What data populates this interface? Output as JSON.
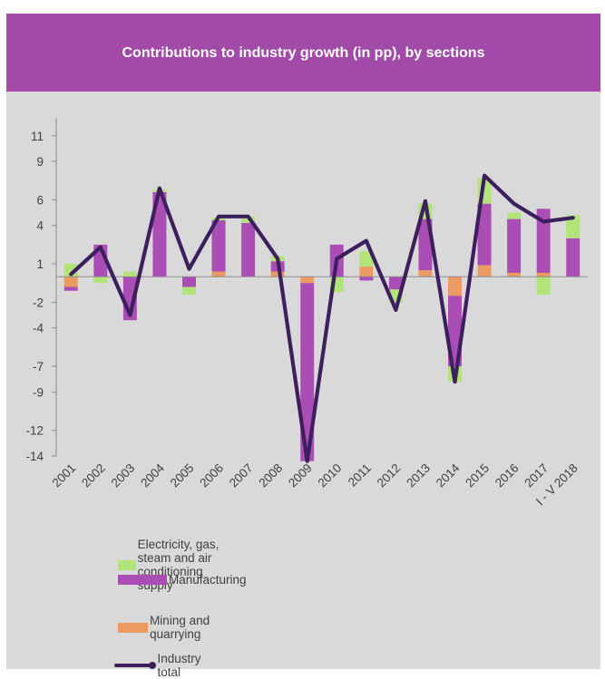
{
  "header": {
    "title": "Contributions to industry growth (in pp), by sections"
  },
  "colors": {
    "header_bg": "#a14aa8",
    "panel_bg": "#d9d9d9",
    "electricity": "#b2e47a",
    "manufacturing": "#aa4db4",
    "mining": "#eb9a62",
    "industry_total": "#3e1f5e"
  },
  "chart_data": {
    "type": "bar",
    "stacked": true,
    "categories": [
      "2001",
      "2002",
      "2003",
      "2004",
      "2005",
      "2006",
      "2007",
      "2008",
      "2009",
      "2010",
      "2011",
      "2012",
      "2013",
      "2014",
      "2015",
      "2016",
      "2017",
      "I - V 2018"
    ],
    "yticks": [
      11,
      9,
      6,
      4,
      1,
      -2,
      -4,
      -7,
      -9,
      -12,
      -14
    ],
    "ylim": [
      -14,
      12.4
    ],
    "grid": false,
    "legend_position": "bottom",
    "series": [
      {
        "name": "Electricity, gas, steam and air conditioning supply",
        "type": "bar",
        "values": [
          1.0,
          -0.5,
          0.4,
          0.2,
          -0.6,
          0.2,
          0.5,
          0.4,
          0.0,
          -1.2,
          1.2,
          -1.0,
          1.2,
          -1.2,
          2.0,
          0.5,
          -1.4,
          1.8
        ]
      },
      {
        "name": "Manufacturing",
        "type": "bar",
        "values": [
          -0.3,
          2.5,
          -3.4,
          6.6,
          -0.8,
          4.0,
          4.2,
          0.8,
          -13.9,
          2.5,
          -0.3,
          -1.0,
          4.0,
          -5.5,
          4.8,
          4.2,
          5.0,
          3.0
        ]
      },
      {
        "name": "Mining and quarrying",
        "type": "bar",
        "values": [
          -0.8,
          0.0,
          0.0,
          0.0,
          0.0,
          0.4,
          0.0,
          0.4,
          -0.5,
          0.0,
          0.8,
          0.0,
          0.5,
          -1.5,
          0.9,
          0.3,
          0.3,
          0.0
        ]
      },
      {
        "name": "Industry total",
        "type": "line",
        "values": [
          0.2,
          2.3,
          -3.0,
          6.9,
          0.6,
          4.7,
          4.7,
          1.4,
          -14.4,
          1.4,
          2.8,
          -2.6,
          5.9,
          -8.2,
          7.9,
          5.7,
          4.3,
          4.6
        ]
      }
    ]
  }
}
